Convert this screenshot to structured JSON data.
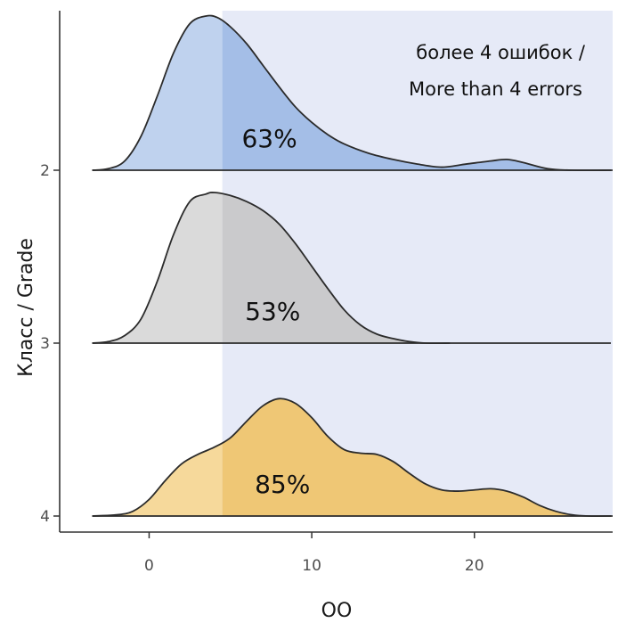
{
  "chart_data": {
    "type": "area",
    "subtype": "ridgeline-density",
    "xlabel": "OO",
    "ylabel": "Класс / Grade",
    "xlim": [
      -5.5,
      28.5
    ],
    "x_ticks": [
      0,
      10,
      20
    ],
    "threshold": 4.5,
    "shaded_region": [
      4.5,
      28.5
    ],
    "shaded_color": "#e6eaf7",
    "annotation": [
      "более 4 ошибок /",
      "More than 4 errors"
    ],
    "grid": false,
    "series": [
      {
        "name": "2",
        "color": "#98b6e4",
        "label": "63%",
        "label_x": 7.4,
        "x": [
          -3.5,
          -2.5,
          -1.5,
          -0.5,
          0.5,
          1.5,
          2.5,
          3.5,
          4.2,
          5.0,
          6.0,
          7.0,
          8.0,
          9.0,
          10.0,
          11.0,
          12.0,
          13.5,
          15.0,
          16.5,
          18.0,
          19.5,
          21.0,
          22.0,
          23.0,
          24.5,
          26.0,
          28.5
        ],
        "density": [
          0.0,
          0.01,
          0.06,
          0.22,
          0.48,
          0.76,
          0.95,
          1.0,
          0.99,
          0.93,
          0.82,
          0.68,
          0.54,
          0.41,
          0.31,
          0.23,
          0.17,
          0.11,
          0.07,
          0.04,
          0.02,
          0.04,
          0.06,
          0.07,
          0.05,
          0.01,
          0.0,
          0.0
        ]
      },
      {
        "name": "3",
        "color": "#c4c4c4",
        "label": "53%",
        "label_x": 7.6,
        "x": [
          -3.5,
          -2.5,
          -1.5,
          -0.5,
          0.5,
          1.5,
          2.5,
          3.5,
          4.0,
          5.0,
          6.0,
          7.0,
          8.0,
          9.0,
          10.0,
          11.0,
          12.0,
          13.0,
          14.0,
          15.0,
          16.0,
          17.0,
          18.5
        ],
        "density": [
          0.0,
          0.01,
          0.05,
          0.16,
          0.41,
          0.72,
          0.94,
          0.99,
          1.0,
          0.98,
          0.94,
          0.88,
          0.79,
          0.66,
          0.51,
          0.36,
          0.22,
          0.12,
          0.06,
          0.03,
          0.01,
          0.0,
          0.0
        ]
      },
      {
        "name": "4",
        "color": "#f0c15e",
        "label": "85%",
        "label_x": 8.2,
        "x": [
          -3.5,
          -2.0,
          -1.0,
          0.0,
          1.0,
          2.0,
          3.0,
          4.0,
          5.0,
          6.0,
          7.0,
          8.0,
          9.0,
          10.0,
          11.0,
          12.0,
          13.0,
          14.0,
          15.0,
          16.0,
          17.0,
          18.0,
          19.0,
          20.0,
          21.0,
          22.0,
          23.0,
          24.0,
          25.0,
          26.0,
          27.0,
          28.5
        ],
        "density": [
          0.0,
          0.01,
          0.04,
          0.14,
          0.3,
          0.44,
          0.52,
          0.58,
          0.66,
          0.8,
          0.93,
          0.99,
          0.95,
          0.83,
          0.67,
          0.56,
          0.53,
          0.52,
          0.46,
          0.36,
          0.27,
          0.22,
          0.21,
          0.22,
          0.23,
          0.21,
          0.16,
          0.09,
          0.04,
          0.01,
          0.0,
          0.0
        ]
      }
    ]
  }
}
